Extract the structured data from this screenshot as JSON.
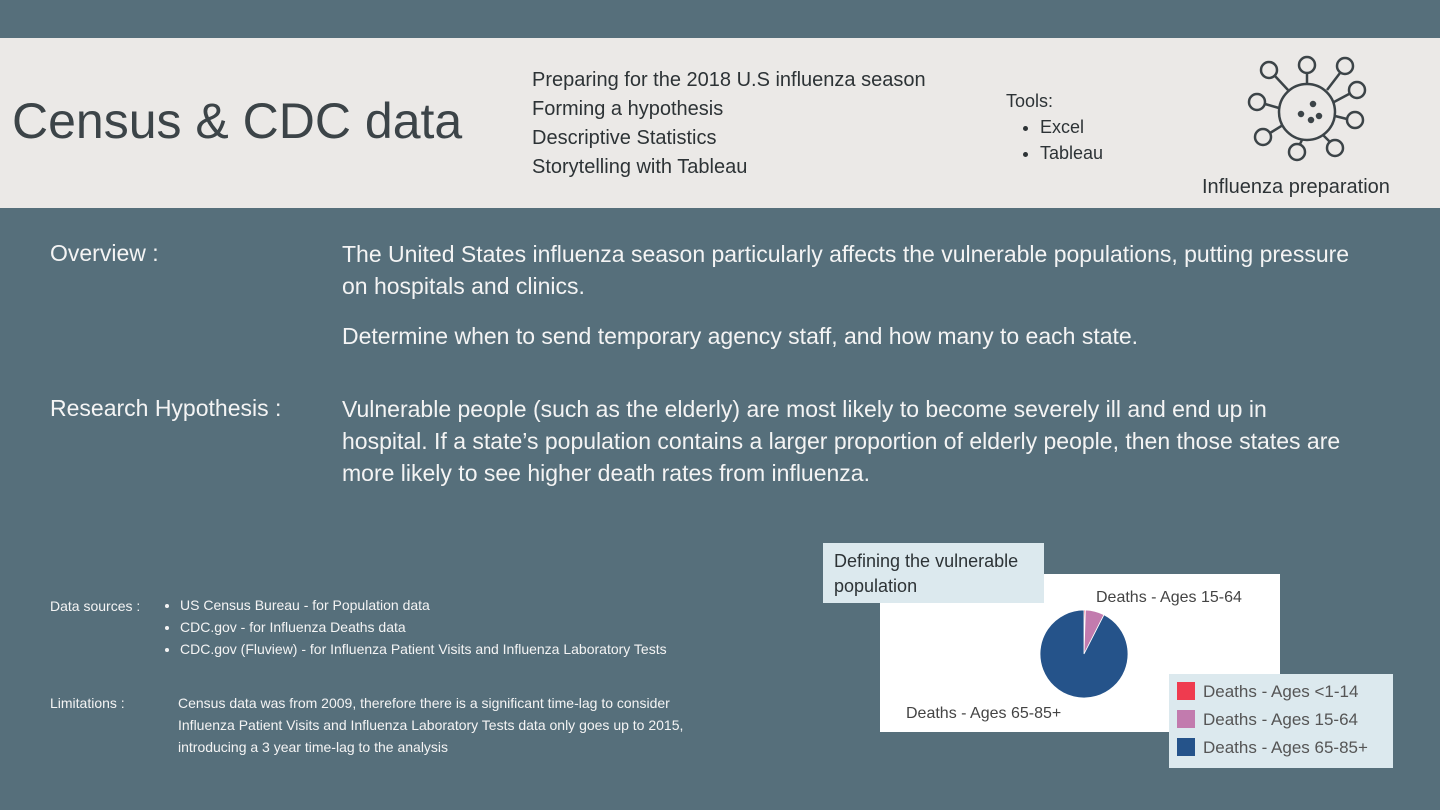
{
  "header": {
    "title": "Census & CDC data",
    "topics": [
      "Preparing for the 2018 U.S influenza season",
      "Forming a hypothesis",
      "Descriptive Statistics",
      "Storytelling with Tableau"
    ],
    "tools_label": "Tools:",
    "tools": [
      "Excel",
      "Tableau"
    ],
    "icon_label": "Influenza preparation"
  },
  "overview": {
    "label": "Overview :",
    "paragraphs": [
      "The United States influenza season particularly affects the vulnerable populations, putting pressure on hospitals and clinics.",
      "Determine when to send temporary agency staff, and how many to each state."
    ]
  },
  "hypothesis": {
    "label": "Research Hypothesis :",
    "text": "Vulnerable people (such as the elderly) are most likely to become severely ill and end up in hospital. If a state’s population contains a larger proportion of elderly people, then those states are more likely to see higher death rates from influenza."
  },
  "sources": {
    "label": "Data sources :",
    "items": [
      "US Census Bureau -  for Population data",
      "CDC.gov - for Influenza Deaths data",
      "CDC.gov (Fluview) - for Influenza Patient Visits and Influenza Laboratory Tests"
    ]
  },
  "limitations": {
    "label": "Limitations :",
    "lines": [
      "Census data was from 2009,  therefore there is a significant time-lag to consider",
      "Influenza Patient Visits and Influenza Laboratory Tests data only goes up to 2015,",
      "introducing a 3 year time-lag to the analysis"
    ]
  },
  "chart_data": {
    "type": "pie",
    "title": "Defining the vulnerable population",
    "categories": [
      "Deaths - Ages <1-14",
      "Deaths - Ages 15-64",
      "Deaths - Ages 65-85+"
    ],
    "values": [
      0.5,
      7,
      92.5
    ],
    "colors": [
      "#ef3b4f",
      "#c27bae",
      "#25538a"
    ]
  }
}
